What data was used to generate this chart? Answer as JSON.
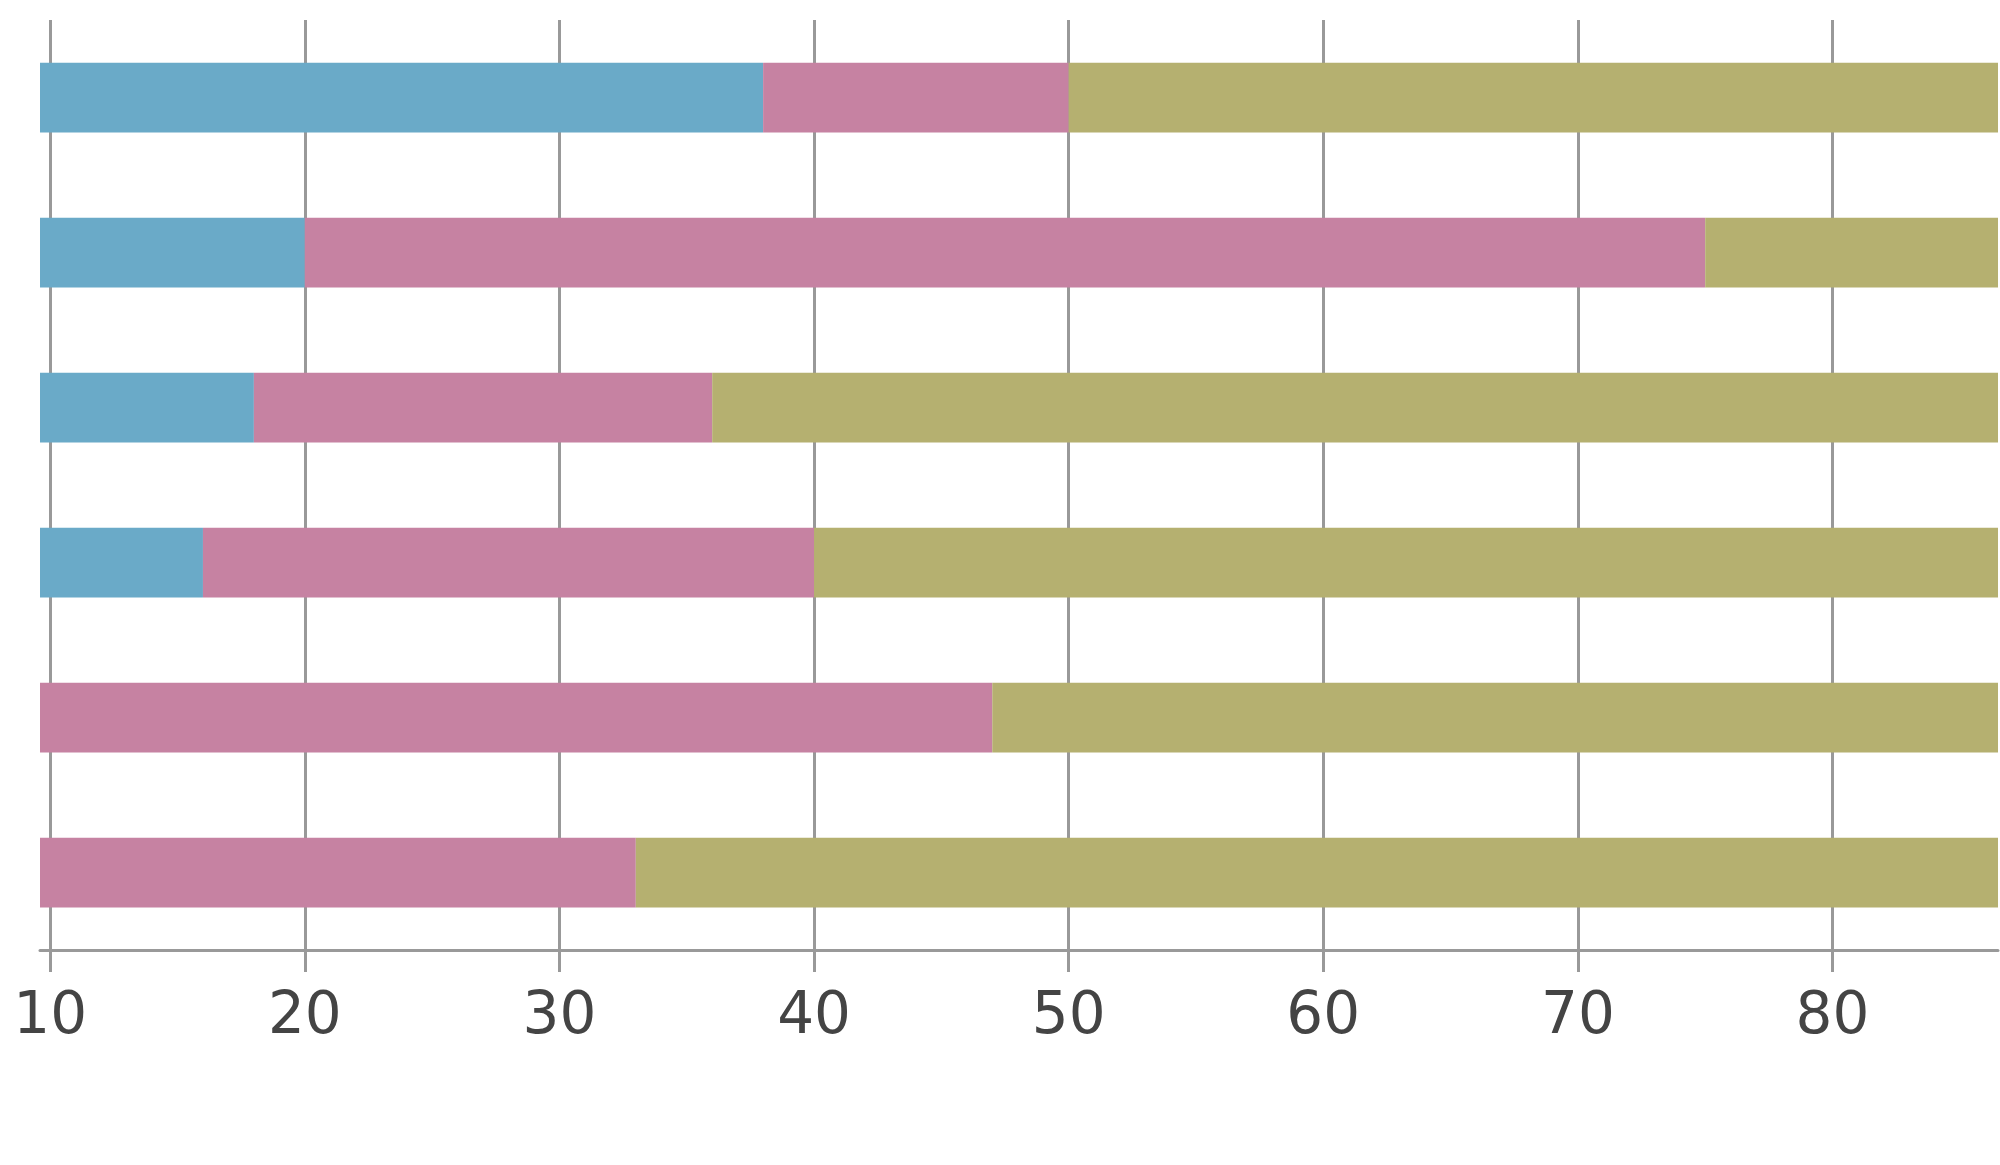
{
  "chart_data": {
    "type": "bar",
    "orientation": "horizontal",
    "stacked": true,
    "categories": [
      null,
      null,
      null,
      null,
      null,
      null
    ],
    "series": [
      {
        "color": "#6aaac8",
        "values": [
          38,
          20,
          18,
          16,
          null,
          null
        ]
      },
      {
        "color": "#c682a2",
        "values": [
          12,
          55,
          18,
          24,
          47,
          33
        ]
      },
      {
        "color": "#b5b070",
        "values": [
          36.5,
          11.5,
          50.5,
          46.5,
          39.5,
          53.5
        ]
      }
    ],
    "xlim": [
      9.6,
      86.5
    ],
    "xticks": [
      10,
      20,
      30,
      40,
      50,
      60,
      70,
      80
    ],
    "grid": "x"
  }
}
